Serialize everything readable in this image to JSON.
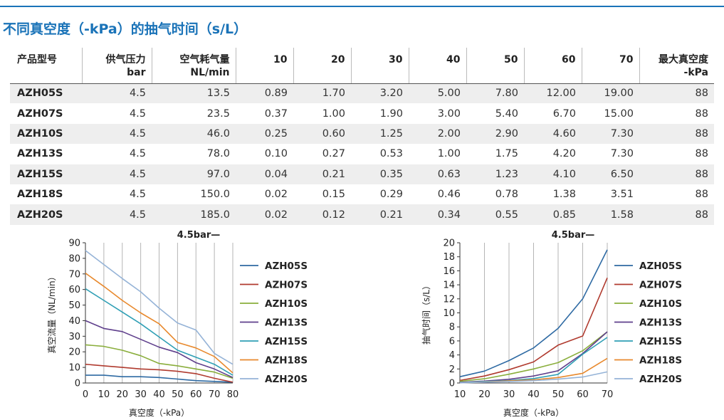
{
  "title": "不同真空度（-kPa）的抽气时间（s/L）",
  "table": {
    "headers": [
      {
        "lines": [
          "产品型号"
        ]
      },
      {
        "lines": [
          "供气压力",
          "bar"
        ]
      },
      {
        "lines": [
          "空气耗气量",
          "NL/min"
        ]
      },
      {
        "lines": [
          "10"
        ]
      },
      {
        "lines": [
          "20"
        ]
      },
      {
        "lines": [
          "30"
        ]
      },
      {
        "lines": [
          "40"
        ]
      },
      {
        "lines": [
          "50"
        ]
      },
      {
        "lines": [
          "60"
        ]
      },
      {
        "lines": [
          "70"
        ]
      },
      {
        "lines": [
          "最大真空度",
          "-kPa"
        ]
      }
    ],
    "rows": [
      [
        "AZH05S",
        "4.5",
        "13.5",
        "0.89",
        "1.70",
        "3.20",
        "5.00",
        "7.80",
        "12.00",
        "19.00",
        "88"
      ],
      [
        "AZH07S",
        "4.5",
        "23.5",
        "0.37",
        "1.00",
        "1.90",
        "3.00",
        "5.40",
        "6.70",
        "15.00",
        "88"
      ],
      [
        "AZH10S",
        "4.5",
        "46.0",
        "0.25",
        "0.60",
        "1.25",
        "2.00",
        "2.90",
        "4.60",
        "7.30",
        "88"
      ],
      [
        "AZH13S",
        "4.5",
        "78.0",
        "0.10",
        "0.27",
        "0.53",
        "1.00",
        "1.75",
        "4.20",
        "7.30",
        "88"
      ],
      [
        "AZH15S",
        "4.5",
        "97.0",
        "0.04",
        "0.21",
        "0.35",
        "0.63",
        "1.23",
        "4.10",
        "6.50",
        "88"
      ],
      [
        "AZH18S",
        "4.5",
        "150.0",
        "0.02",
        "0.15",
        "0.29",
        "0.46",
        "0.78",
        "1.38",
        "3.51",
        "88"
      ],
      [
        "AZH20S",
        "4.5",
        "185.0",
        "0.02",
        "0.12",
        "0.21",
        "0.34",
        "0.55",
        "0.85",
        "1.58",
        "88"
      ]
    ]
  },
  "chart_data": [
    {
      "type": "line",
      "annotation": "4.5bar—",
      "xlabel": "真空度（-kPa）",
      "ylabel": "真空流量（NL/min）",
      "xlim": [
        0,
        80
      ],
      "ylim": [
        0,
        90
      ],
      "x_ticks": [
        0,
        10,
        20,
        30,
        40,
        50,
        60,
        70,
        80
      ],
      "y_ticks": [
        0,
        10,
        20,
        30,
        40,
        50,
        60,
        70,
        80,
        90
      ],
      "grid": "vertical",
      "legend": "right",
      "series": [
        {
          "name": "AZH05S",
          "color": "#2e6aa3",
          "x": [
            0,
            10,
            20,
            30,
            40,
            50,
            60,
            70,
            80
          ],
          "y": [
            5,
            5,
            4,
            4,
            3.5,
            2.5,
            1.5,
            1,
            0.5
          ]
        },
        {
          "name": "AZH07S",
          "color": "#b03a2e",
          "x": [
            0,
            10,
            20,
            30,
            40,
            50,
            60,
            70,
            80
          ],
          "y": [
            12,
            11,
            10,
            9,
            8.5,
            7.5,
            6,
            3,
            0.5
          ]
        },
        {
          "name": "AZH10S",
          "color": "#8aae3c",
          "x": [
            0,
            10,
            20,
            30,
            40,
            50,
            60,
            70,
            80
          ],
          "y": [
            24.5,
            23.5,
            21,
            17.5,
            12.5,
            11,
            9,
            7,
            3
          ]
        },
        {
          "name": "AZH13S",
          "color": "#5f3f8c",
          "x": [
            0,
            10,
            20,
            30,
            40,
            50,
            60,
            70,
            80
          ],
          "y": [
            40,
            35,
            33,
            28,
            23,
            19.5,
            13,
            9,
            3.5
          ]
        },
        {
          "name": "AZH15S",
          "color": "#2f9fb5",
          "x": [
            0,
            10,
            20,
            30,
            40,
            50,
            60,
            70,
            80
          ],
          "y": [
            60.5,
            53,
            45.5,
            38,
            29.5,
            21,
            16.5,
            12,
            5
          ]
        },
        {
          "name": "AZH18S",
          "color": "#e8892d",
          "x": [
            0,
            10,
            20,
            30,
            40,
            50,
            60,
            70,
            80
          ],
          "y": [
            70.5,
            62,
            53,
            45,
            38,
            26,
            22.5,
            17,
            6.5
          ]
        },
        {
          "name": "AZH20S",
          "color": "#95b3d7",
          "x": [
            0,
            10,
            20,
            30,
            40,
            50,
            60,
            70,
            80
          ],
          "y": [
            85,
            76,
            67,
            58.5,
            48,
            38.5,
            34,
            19,
            12
          ]
        }
      ]
    },
    {
      "type": "line",
      "annotation": "4.5bar—",
      "xlabel": "真空度（-kPa）",
      "ylabel": "抽气时间（s/L）",
      "xlim": [
        10,
        70
      ],
      "ylim": [
        0,
        20
      ],
      "x_ticks": [
        10,
        20,
        30,
        40,
        50,
        60,
        70
      ],
      "y_ticks": [
        0,
        2,
        4,
        6,
        8,
        10,
        12,
        14,
        16,
        18,
        20
      ],
      "grid": "vertical",
      "legend": "right",
      "series": [
        {
          "name": "AZH05S",
          "color": "#2e6aa3",
          "x": [
            10,
            20,
            30,
            40,
            50,
            60,
            70
          ],
          "y": [
            0.89,
            1.7,
            3.2,
            5.0,
            7.8,
            12.0,
            19.0
          ]
        },
        {
          "name": "AZH07S",
          "color": "#b03a2e",
          "x": [
            10,
            20,
            30,
            40,
            50,
            60,
            70
          ],
          "y": [
            0.37,
            1.0,
            1.9,
            3.0,
            5.4,
            6.7,
            15.0
          ]
        },
        {
          "name": "AZH10S",
          "color": "#8aae3c",
          "x": [
            10,
            20,
            30,
            40,
            50,
            60,
            70
          ],
          "y": [
            0.25,
            0.6,
            1.25,
            2.0,
            2.9,
            4.6,
            7.3
          ]
        },
        {
          "name": "AZH13S",
          "color": "#5f3f8c",
          "x": [
            10,
            20,
            30,
            40,
            50,
            60,
            70
          ],
          "y": [
            0.1,
            0.27,
            0.53,
            1.0,
            1.75,
            4.2,
            7.3
          ]
        },
        {
          "name": "AZH15S",
          "color": "#2f9fb5",
          "x": [
            10,
            20,
            30,
            40,
            50,
            60,
            70
          ],
          "y": [
            0.04,
            0.21,
            0.35,
            0.63,
            1.23,
            4.1,
            6.5
          ]
        },
        {
          "name": "AZH18S",
          "color": "#e8892d",
          "x": [
            10,
            20,
            30,
            40,
            50,
            60,
            70
          ],
          "y": [
            0.02,
            0.15,
            0.29,
            0.46,
            0.78,
            1.38,
            3.51
          ]
        },
        {
          "name": "AZH20S",
          "color": "#95b3d7",
          "x": [
            10,
            20,
            30,
            40,
            50,
            60,
            70
          ],
          "y": [
            0.02,
            0.12,
            0.21,
            0.34,
            0.55,
            0.85,
            1.58
          ]
        }
      ]
    }
  ]
}
